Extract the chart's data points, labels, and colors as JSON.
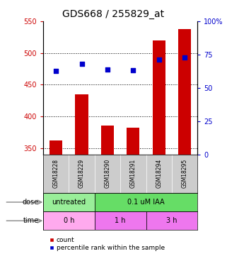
{
  "title": "GDS668 / 255829_at",
  "samples": [
    "GSM18228",
    "GSM18229",
    "GSM18290",
    "GSM18291",
    "GSM18294",
    "GSM18295"
  ],
  "bar_values": [
    362,
    435,
    385,
    382,
    520,
    538
  ],
  "dot_values": [
    472,
    483,
    474,
    473,
    489,
    493
  ],
  "bar_color": "#cc0000",
  "dot_color": "#0000cc",
  "ylim_left": [
    340,
    550
  ],
  "ylim_right": [
    0,
    100
  ],
  "yticks_left": [
    350,
    400,
    450,
    500,
    550
  ],
  "yticks_right": [
    0,
    25,
    50,
    75,
    100
  ],
  "yticklabels_right": [
    "0",
    "25",
    "50",
    "75",
    "100%"
  ],
  "dose_labels": [
    {
      "text": "untreated",
      "start": 0,
      "end": 2,
      "color": "#99ee99"
    },
    {
      "text": "0.1 uM IAA",
      "start": 2,
      "end": 6,
      "color": "#66dd66"
    }
  ],
  "time_colors": [
    "#ffaaee",
    "#ee77ee",
    "#ee77ee"
  ],
  "time_labels": [
    {
      "text": "0 h",
      "start": 0,
      "end": 2
    },
    {
      "text": "1 h",
      "start": 2,
      "end": 4
    },
    {
      "text": "3 h",
      "start": 4,
      "end": 6
    }
  ],
  "dose_row_label": "dose",
  "time_row_label": "time",
  "legend_count_label": "count",
  "legend_pct_label": "percentile rank within the sample",
  "background_color": "#ffffff",
  "title_fontsize": 10,
  "tick_fontsize": 7,
  "label_fontsize": 7,
  "sample_fontsize": 5.5,
  "row_fontsize": 7
}
